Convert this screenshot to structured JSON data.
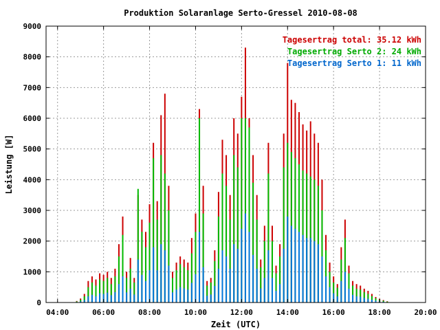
{
  "chart_data": {
    "type": "bar",
    "title": "Produktion Solaranlage Serto-Gressel 2010-08-08",
    "xlabel": "Zeit (UTC)",
    "ylabel": "Leistung [W]",
    "xlim": [
      3.5,
      20.0
    ],
    "ylim": [
      0,
      9000
    ],
    "x_ticks": [
      "04:00",
      "06:00",
      "08:00",
      "10:00",
      "12:00",
      "14:00",
      "16:00",
      "18:00",
      "20:00"
    ],
    "y_ticks": [
      "0",
      "1000",
      "2000",
      "3000",
      "4000",
      "5000",
      "6000",
      "7000",
      "8000",
      "9000"
    ],
    "grid": true,
    "legend_position": "top-right",
    "legend": [
      {
        "text": "Tagesertrag total: 35.12 kWh",
        "color": "#cc0000"
      },
      {
        "text": "Tagesertrag Serto 2: 24 kWh",
        "color": "#00aa00"
      },
      {
        "text": "Tagesertrag Serto 1: 11 kWh",
        "color": "#0066cc"
      }
    ],
    "colors": {
      "total": "#cc0000",
      "serto2": "#00bb00",
      "serto1": "#0077dd"
    },
    "x": [
      "04:50",
      "05:00",
      "05:10",
      "05:20",
      "05:30",
      "05:40",
      "05:50",
      "06:00",
      "06:10",
      "06:20",
      "06:30",
      "06:40",
      "06:50",
      "07:00",
      "07:10",
      "07:20",
      "07:30",
      "07:40",
      "07:50",
      "08:00",
      "08:10",
      "08:20",
      "08:30",
      "08:40",
      "08:50",
      "09:00",
      "09:10",
      "09:20",
      "09:30",
      "09:40",
      "09:50",
      "10:00",
      "10:10",
      "10:20",
      "10:30",
      "10:40",
      "10:50",
      "11:00",
      "11:10",
      "11:20",
      "11:30",
      "11:40",
      "11:50",
      "12:00",
      "12:10",
      "12:20",
      "12:30",
      "12:40",
      "12:50",
      "13:00",
      "13:10",
      "13:20",
      "13:30",
      "13:40",
      "13:50",
      "14:00",
      "14:10",
      "14:20",
      "14:30",
      "14:40",
      "14:50",
      "15:00",
      "15:10",
      "15:20",
      "15:30",
      "15:40",
      "15:50",
      "16:00",
      "16:10",
      "16:20",
      "16:30",
      "16:40",
      "16:50",
      "17:00",
      "17:10",
      "17:20",
      "17:30",
      "17:40",
      "17:50",
      "18:00",
      "18:10",
      "18:20"
    ],
    "series": [
      {
        "name": "Tagesertrag total: 35.12 kWh",
        "values": [
          50,
          130,
          280,
          700,
          850,
          750,
          950,
          900,
          1000,
          800,
          1100,
          1900,
          2800,
          1000,
          1450,
          800,
          3500,
          2700,
          2300,
          3200,
          5200,
          3300,
          6100,
          6800,
          3800,
          1000,
          1300,
          1500,
          1400,
          1300,
          2100,
          2900,
          6300,
          3800,
          700,
          800,
          1700,
          3600,
          5300,
          4800,
          3500,
          6000,
          5500,
          6700,
          8300,
          6000,
          4800,
          3500,
          1400,
          2500,
          5200,
          2500,
          1200,
          1900,
          5500,
          7800,
          6600,
          6500,
          6200,
          5800,
          5600,
          5900,
          5500,
          5200,
          4000,
          2200,
          1300,
          850,
          600,
          1800,
          2700,
          1200,
          700,
          600,
          550,
          450,
          380,
          280,
          180,
          120,
          80,
          40
        ]
      },
      {
        "name": "Tagesertrag Serto 2: 24 kWh",
        "values": [
          35,
          90,
          200,
          500,
          650,
          550,
          750,
          700,
          800,
          600,
          850,
          1500,
          2200,
          800,
          1100,
          650,
          3700,
          2300,
          1800,
          2600,
          4700,
          2700,
          4800,
          4200,
          3000,
          800,
          1050,
          1250,
          1150,
          1050,
          1600,
          2300,
          6000,
          2900,
          550,
          650,
          1350,
          2800,
          4200,
          3800,
          2700,
          4800,
          4400,
          6000,
          6000,
          5700,
          3900,
          2700,
          1150,
          2000,
          4200,
          2000,
          950,
          1500,
          4400,
          5200,
          4900,
          4700,
          4500,
          4300,
          4200,
          4100,
          4000,
          3800,
          3000,
          1700,
          1000,
          650,
          480,
          1400,
          2100,
          950,
          550,
          450,
          420,
          340,
          280,
          210,
          140,
          90,
          60,
          30
        ]
      },
      {
        "name": "Tagesertrag Serto 1: 11 kWh",
        "values": [
          15,
          40,
          80,
          200,
          250,
          200,
          300,
          280,
          320,
          240,
          340,
          600,
          850,
          330,
          450,
          260,
          1400,
          900,
          700,
          1050,
          1800,
          1050,
          1900,
          1700,
          1200,
          330,
          420,
          500,
          460,
          420,
          640,
          920,
          2300,
          1150,
          220,
          260,
          540,
          1100,
          1700,
          1500,
          1100,
          1900,
          1750,
          2400,
          2900,
          2300,
          1550,
          1100,
          460,
          800,
          1700,
          800,
          380,
          600,
          1750,
          2800,
          2500,
          2400,
          2300,
          2200,
          2100,
          2100,
          2000,
          1900,
          1500,
          850,
          500,
          300,
          200,
          700,
          1000,
          450,
          250,
          200,
          190,
          150,
          120,
          90,
          60,
          40,
          25,
          10
        ]
      }
    ]
  }
}
